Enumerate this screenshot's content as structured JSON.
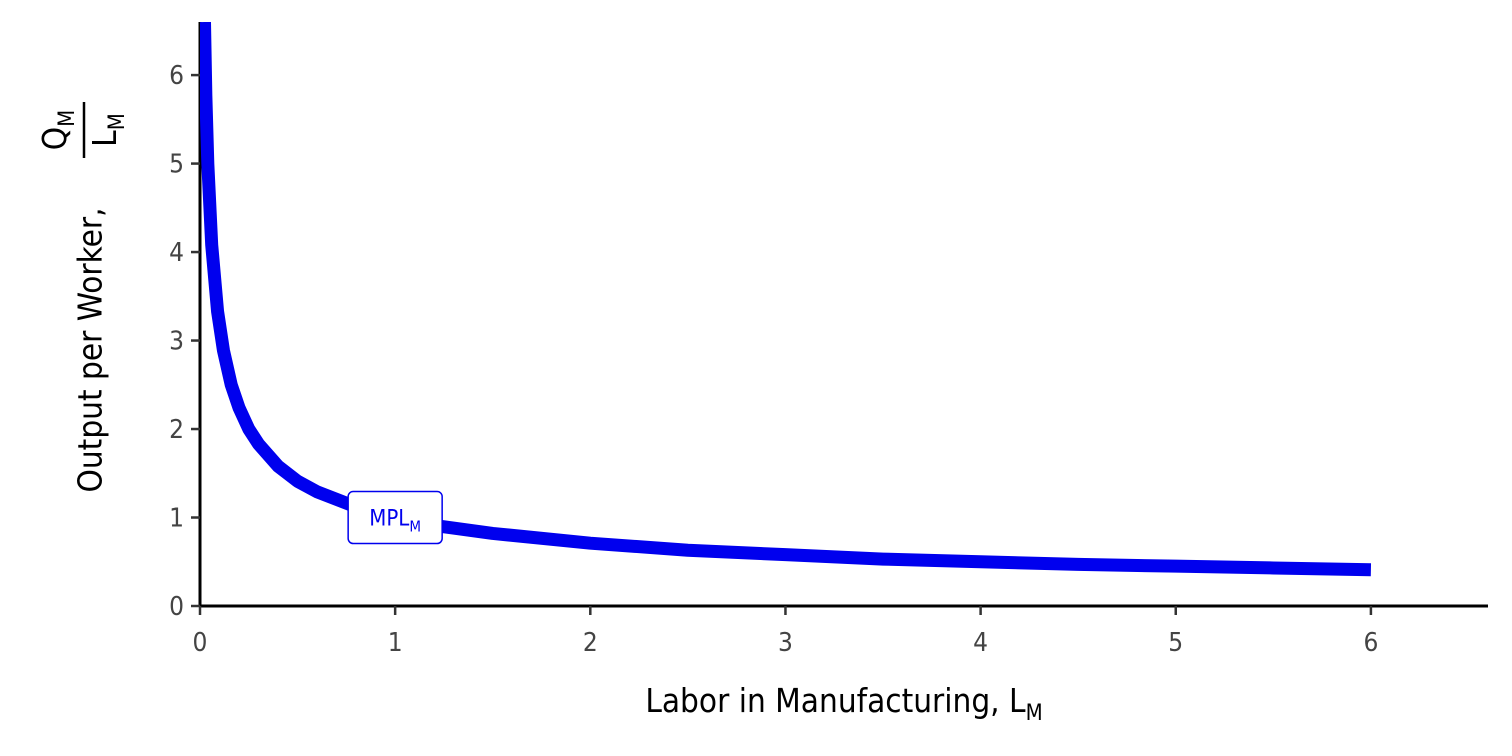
{
  "chart_data": {
    "type": "line",
    "xlabel": "Labor in Manufacturing, ",
    "xlabel_sub": "M",
    "xlabel_main_letter": "L",
    "ylabel": "Output per Worker, ",
    "ylabel_fraction_numerator": "Q",
    "ylabel_fraction_numerator_sub": "M",
    "ylabel_fraction_denominator": "L",
    "ylabel_fraction_denominator_sub": "M",
    "xlim": [
      0,
      6.6
    ],
    "ylim": [
      0,
      6.6
    ],
    "x_ticks": [
      0,
      1,
      2,
      3,
      4,
      5,
      6
    ],
    "y_ticks": [
      0,
      1,
      2,
      3,
      4,
      5,
      6
    ],
    "grid": false,
    "series": [
      {
        "name": "MPL",
        "name_sub": "M",
        "color": "#0000EE",
        "function": "1/sqrt(x)",
        "x": [
          0.023,
          0.03,
          0.04,
          0.06,
          0.09,
          0.12,
          0.16,
          0.2,
          0.25,
          0.3,
          0.4,
          0.5,
          0.6,
          0.8,
          1.0,
          1.2,
          1.5,
          2.0,
          2.5,
          3.0,
          3.5,
          4.0,
          4.5,
          5.0,
          5.5,
          6.0
        ],
        "y": [
          6.6,
          5.77,
          5.0,
          4.08,
          3.33,
          2.89,
          2.5,
          2.24,
          2.0,
          1.83,
          1.58,
          1.41,
          1.29,
          1.12,
          1.0,
          0.91,
          0.82,
          0.71,
          0.63,
          0.58,
          0.53,
          0.5,
          0.47,
          0.45,
          0.43,
          0.41
        ]
      }
    ],
    "annotations": [
      {
        "text": "MPL",
        "sub": "M",
        "x": 1.0,
        "y": 1.0,
        "color": "#0000EE"
      }
    ]
  }
}
